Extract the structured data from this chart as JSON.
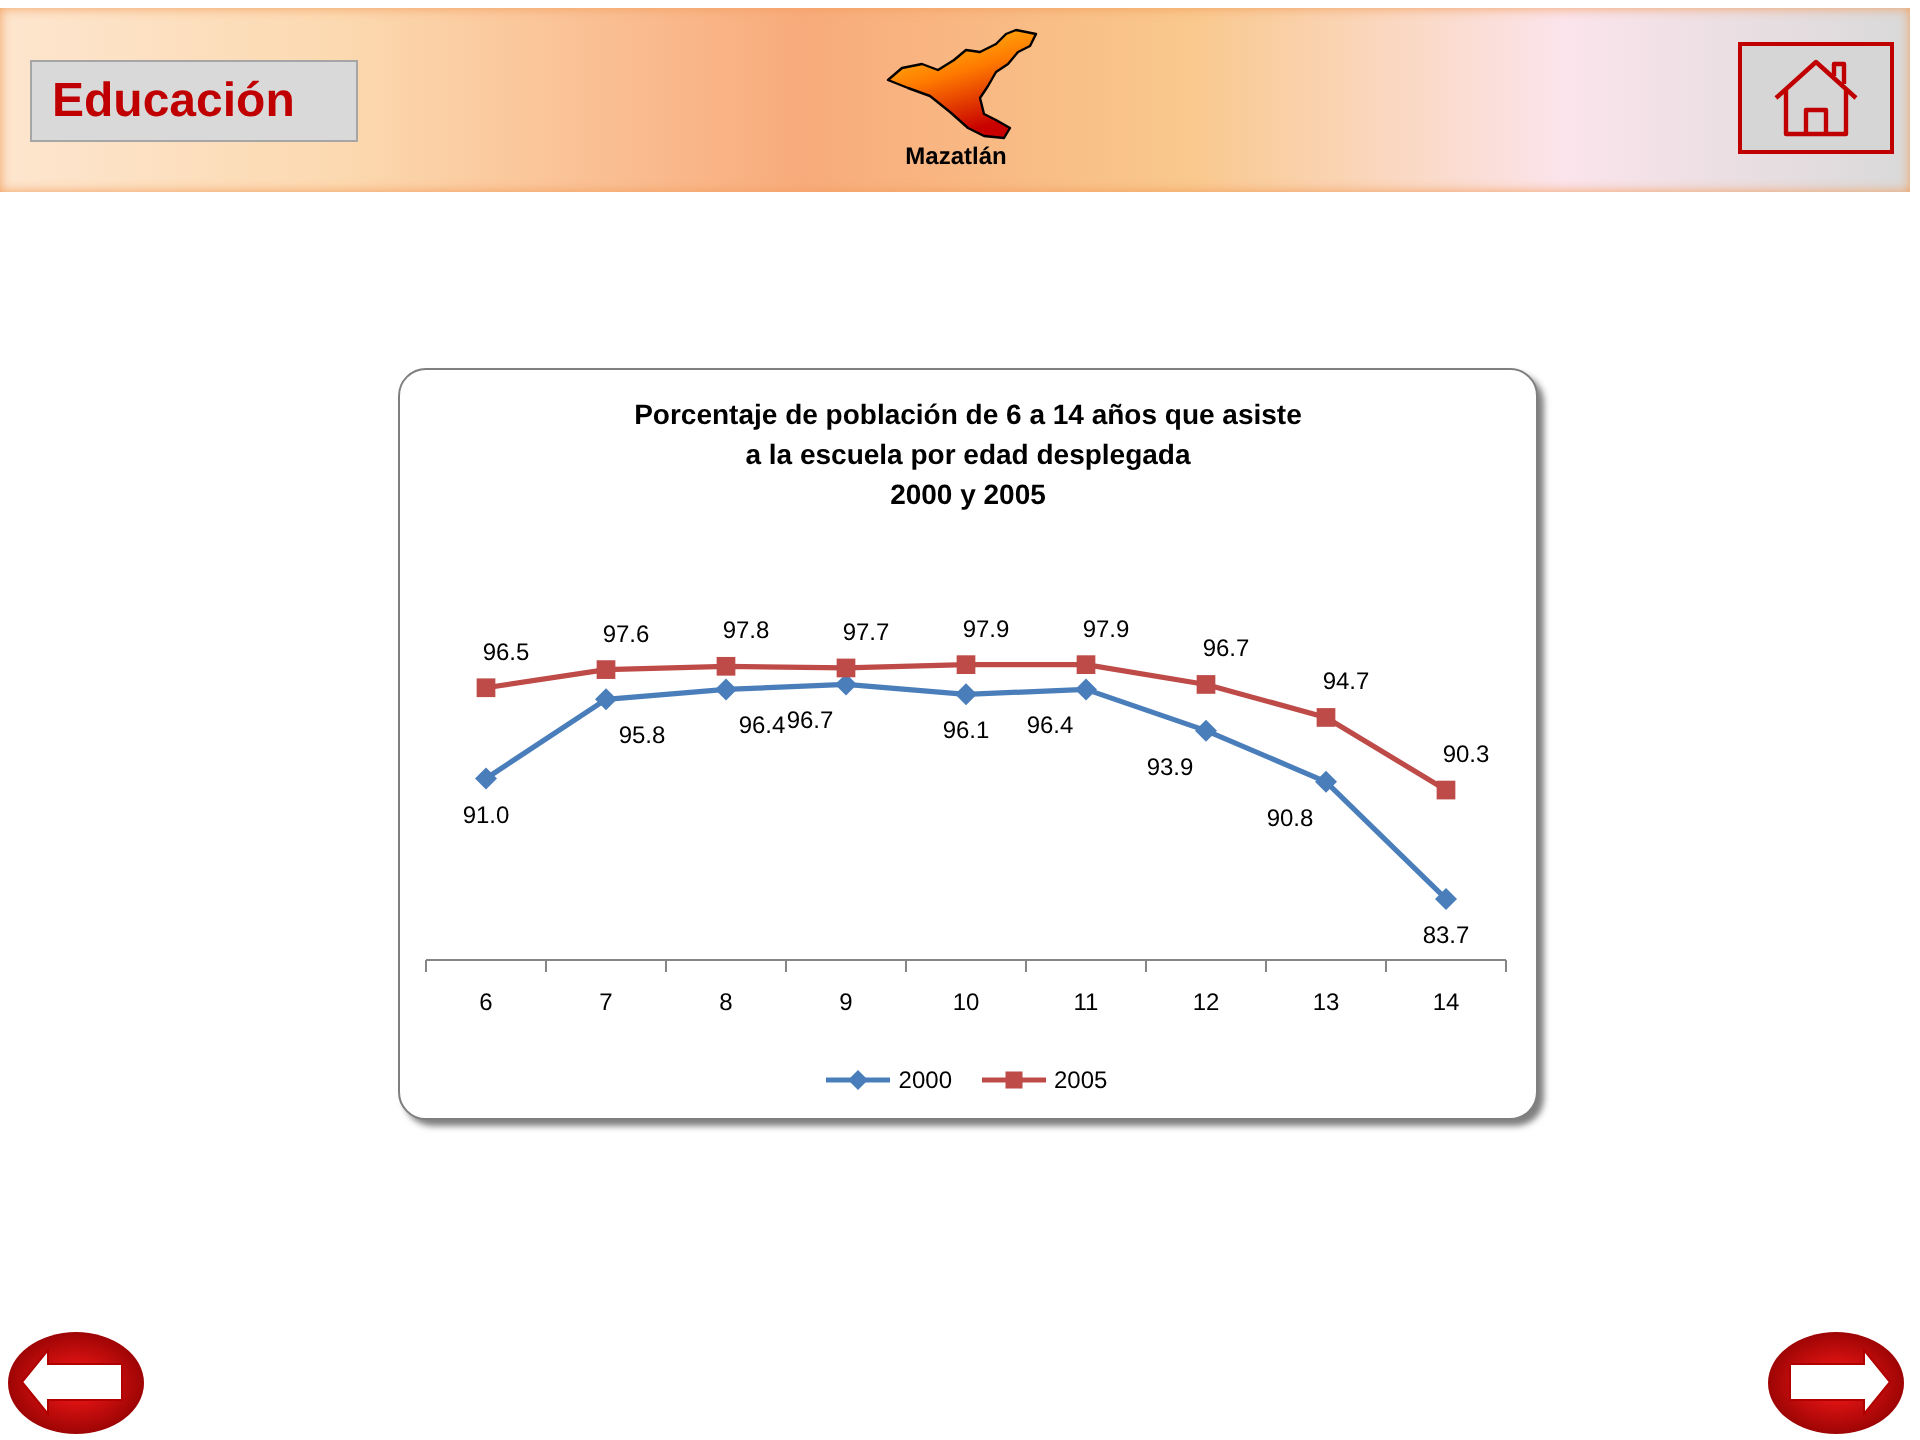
{
  "chart_data": {
    "type": "line",
    "title": "Porcentaje de población de 6 a 14 años que asiste\na la escuela por edad desplegada\n2000 y 2005",
    "annotations": [
      "Educación",
      "Mazatlán"
    ],
    "categories": [
      "6",
      "7",
      "8",
      "9",
      "10",
      "11",
      "12",
      "13",
      "14"
    ],
    "series": [
      {
        "name": "2000",
        "color": "#4a7ebb",
        "marker": "diamond",
        "values": [
          91.0,
          95.8,
          96.4,
          96.7,
          96.1,
          96.4,
          93.9,
          90.8,
          83.7
        ],
        "value_labels": [
          "91.0",
          "95.8",
          "96.4",
          "96.7",
          "96.1",
          "96.4",
          "93.9",
          "90.8",
          "83.7"
        ]
      },
      {
        "name": "2005",
        "color": "#be4b48",
        "marker": "square",
        "values": [
          96.5,
          97.6,
          97.8,
          97.7,
          97.9,
          97.9,
          96.7,
          94.7,
          90.3
        ],
        "value_labels": [
          "96.5",
          "97.6",
          "97.8",
          "97.7",
          "97.9",
          "97.9",
          "96.7",
          "94.7",
          "90.3"
        ]
      }
    ],
    "legend": "bottom",
    "grid": false,
    "tick_labels": "x",
    "line_style": "solid"
  }
}
